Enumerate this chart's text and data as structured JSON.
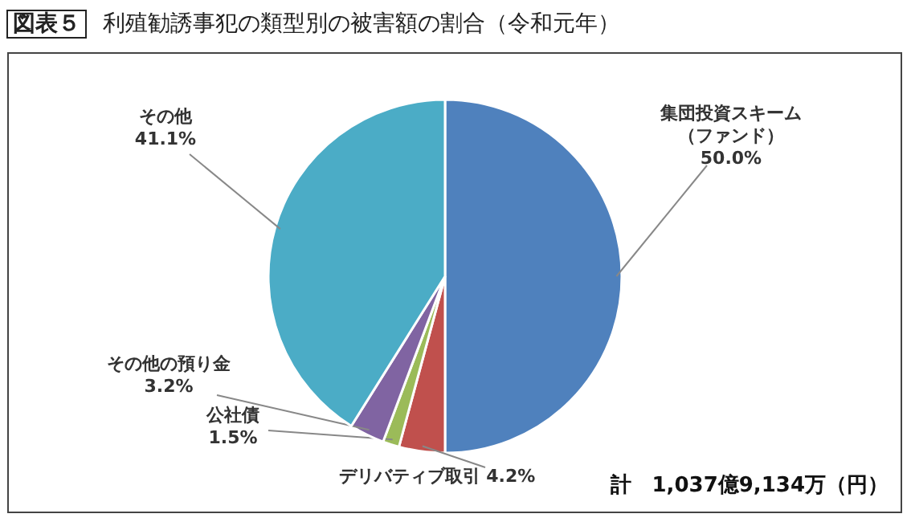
{
  "chart_data": {
    "type": "pie",
    "title": "図表５ 利殖勧誘事犯の類型別の被害額の割合（令和元年）",
    "categories": [
      "集団投資スキーム（ファンド）",
      "デリバティブ取引",
      "公社債",
      "その他の預り金",
      "その他"
    ],
    "values": [
      50.0,
      4.2,
      1.5,
      3.2,
      41.1
    ],
    "colors": [
      "#4f81bd",
      "#c0504d",
      "#9bbb59",
      "#8064a2",
      "#4bacc6"
    ],
    "value_labels": [
      "50.0%",
      "4.2%",
      "1.5%",
      "3.2%",
      "41.1%"
    ],
    "annotations": [
      "計　1,037億9,134万（円）"
    ]
  }
}
